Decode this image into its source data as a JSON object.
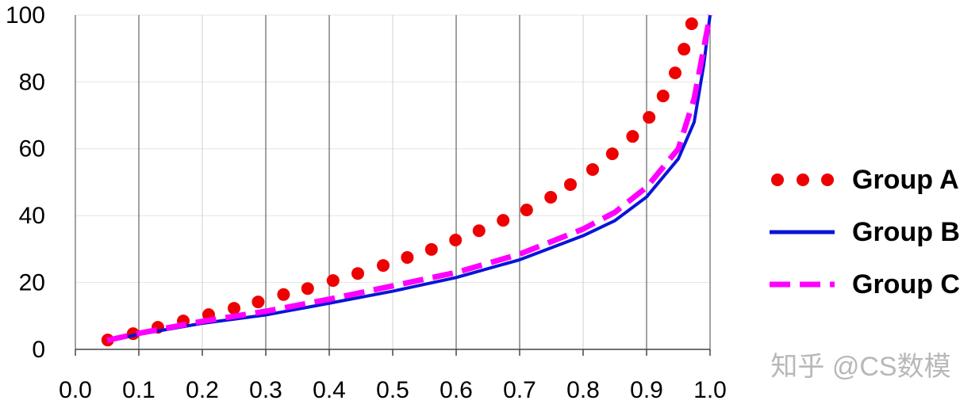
{
  "chart_data": {
    "type": "mixed",
    "xlim": [
      0,
      1
    ],
    "ylim": [
      0,
      100
    ],
    "xticks": [
      {
        "value": 0,
        "label": "0.0"
      },
      0.1,
      0.2,
      0.3,
      0.4,
      0.5,
      0.6,
      0.7,
      0.8,
      0.9,
      {
        "value": 1,
        "label": "1.0"
      }
    ],
    "yticks": [
      0,
      20,
      40,
      60,
      80,
      100
    ],
    "grid": true,
    "series": [
      {
        "name": "Group A",
        "kind": "scatter",
        "color": "#ee0000",
        "x": [
          0.051,
          0.091,
          0.13,
          0.17,
          0.21,
          0.25,
          0.288,
          0.328,
          0.366,
          0.406,
          0.445,
          0.485,
          0.523,
          0.561,
          0.599,
          0.636,
          0.674,
          0.711,
          0.749,
          0.78,
          0.815,
          0.846,
          0.878,
          0.904,
          0.926,
          0.945,
          0.959,
          0.971
        ],
        "values": [
          2.8,
          4.7,
          6.6,
          8.5,
          10.4,
          12.3,
          14.2,
          16.4,
          18.2,
          20.6,
          22.7,
          25.1,
          27.5,
          29.9,
          32.7,
          35.5,
          38.6,
          41.7,
          45.5,
          49.3,
          53.8,
          58.5,
          63.7,
          69.4,
          75.8,
          82.7,
          89.8,
          97.4
        ]
      },
      {
        "name": "Group B",
        "kind": "line",
        "line_style": "solid",
        "color": "#0a14d8",
        "x": [
          0.05,
          0.1,
          0.2,
          0.3,
          0.4,
          0.5,
          0.6,
          0.7,
          0.8,
          0.85,
          0.9,
          0.95,
          0.975,
          0.99,
          1.0
        ],
        "values": [
          2.5,
          4.5,
          7.8,
          10.3,
          13.8,
          17.4,
          21.5,
          26.8,
          34,
          38.5,
          45.6,
          57,
          68,
          85,
          100
        ]
      },
      {
        "name": "Group C",
        "kind": "line",
        "line_style": "dashed",
        "color": "#ff00ff",
        "x": [
          0.05,
          0.1,
          0.2,
          0.3,
          0.4,
          0.5,
          0.6,
          0.7,
          0.8,
          0.85,
          0.9,
          0.95,
          0.975,
          0.99,
          1.0
        ],
        "values": [
          2.7,
          4.8,
          8.4,
          11.4,
          15,
          19,
          23,
          28.5,
          36,
          41,
          48.5,
          60,
          75,
          90,
          100
        ]
      }
    ],
    "watermark": "知乎 @CS数模"
  }
}
